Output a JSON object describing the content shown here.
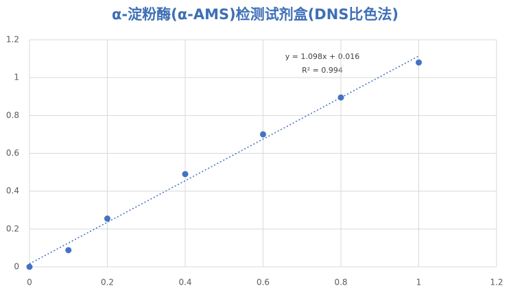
{
  "chart_data": {
    "type": "scatter",
    "title": "α-淀粉酶(α-AMS)检测试剂盒(DNS比色法)",
    "x": [
      0,
      0.1,
      0.2,
      0.4,
      0.6,
      0.8,
      1
    ],
    "values": [
      0,
      0.088,
      0.255,
      0.49,
      0.7,
      0.895,
      1.08
    ],
    "color": "#4472c4",
    "xlim": [
      0,
      1.2
    ],
    "xticks": [
      0,
      0.2,
      0.4,
      0.6,
      0.8,
      1,
      1.2
    ],
    "ylim": [
      0,
      1.2
    ],
    "yticks": [
      0,
      0.2,
      0.4,
      0.6,
      0.8,
      1,
      1.2
    ],
    "grid": true,
    "trendline": {
      "slope": 1.098,
      "intercept": 0.016,
      "equation": "y = 1.098x + 0.016",
      "r_squared": "R² = 0.994"
    }
  }
}
